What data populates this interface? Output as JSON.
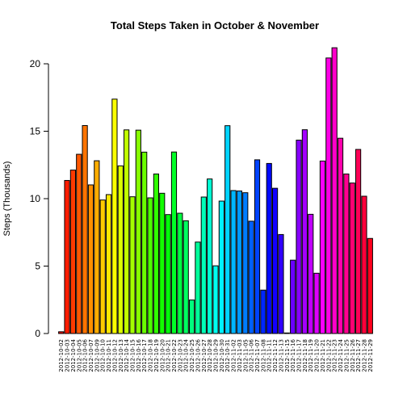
{
  "chart_data": {
    "type": "bar",
    "title": "Total Steps Taken in October & November",
    "xlabel": "",
    "ylabel": "Steps (Thousands)",
    "ylim": [
      0,
      21.5
    ],
    "yticks": [
      0,
      5,
      10,
      15,
      20
    ],
    "grid": false,
    "categories": [
      "2012-10-02",
      "2012-10-03",
      "2012-10-04",
      "2012-10-05",
      "2012-10-06",
      "2012-10-07",
      "2012-10-09",
      "2012-10-10",
      "2012-10-11",
      "2012-10-12",
      "2012-10-13",
      "2012-10-14",
      "2012-10-15",
      "2012-10-16",
      "2012-10-17",
      "2012-10-18",
      "2012-10-19",
      "2012-10-20",
      "2012-10-21",
      "2012-10-22",
      "2012-10-23",
      "2012-10-24",
      "2012-10-25",
      "2012-10-26",
      "2012-10-27",
      "2012-10-28",
      "2012-10-29",
      "2012-10-30",
      "2012-10-31",
      "2012-11-02",
      "2012-11-03",
      "2012-11-05",
      "2012-11-06",
      "2012-11-07",
      "2012-11-08",
      "2012-11-11",
      "2012-11-12",
      "2012-11-13",
      "2012-11-15",
      "2012-11-16",
      "2012-11-17",
      "2012-11-18",
      "2012-11-19",
      "2012-11-20",
      "2012-11-21",
      "2012-11-22",
      "2012-11-23",
      "2012-11-24",
      "2012-11-25",
      "2012-11-26",
      "2012-11-27",
      "2012-11-28",
      "2012-11-29"
    ],
    "values": [
      0.13,
      11.35,
      12.12,
      13.29,
      15.42,
      11.02,
      12.81,
      9.9,
      10.3,
      17.38,
      12.43,
      15.1,
      10.14,
      15.08,
      13.45,
      10.06,
      11.83,
      10.4,
      8.82,
      13.46,
      8.92,
      8.36,
      2.49,
      6.78,
      10.12,
      11.46,
      5.02,
      9.82,
      15.41,
      10.6,
      10.57,
      10.44,
      8.33,
      12.88,
      3.22,
      12.61,
      10.77,
      7.34,
      0.04,
      5.44,
      14.34,
      15.11,
      8.84,
      4.47,
      12.79,
      20.43,
      21.19,
      14.48,
      11.83,
      11.16,
      13.65,
      10.18,
      7.05
    ]
  }
}
